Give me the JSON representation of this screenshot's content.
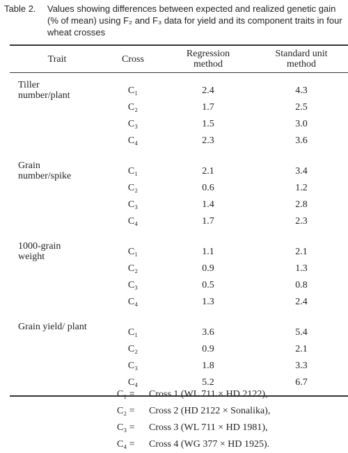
{
  "table_label": "Table 2.",
  "caption": "Values showing differences between expected and realized genetic gain (% of mean) using F₂ and F₃ data for yield and its component traits in four wheat crosses",
  "table": {
    "headers": [
      "Trait",
      "Cross",
      "Regression method",
      "Standard unit method"
    ],
    "groups": [
      {
        "trait": "Tiller number/plant",
        "rows": [
          [
            "C₁",
            "2.4",
            "4.3"
          ],
          [
            "C₂",
            "1.7",
            "2.5"
          ],
          [
            "C₃",
            "1.5",
            "3.0"
          ],
          [
            "C₄",
            "2.3",
            "3.6"
          ]
        ]
      },
      {
        "trait": "Grain number/spike",
        "rows": [
          [
            "C₁",
            "2.1",
            "3.4"
          ],
          [
            "C₂",
            "0.6",
            "1.2"
          ],
          [
            "C₃",
            "1.4",
            "2.8"
          ],
          [
            "C₄",
            "1.7",
            "2.3"
          ]
        ]
      },
      {
        "trait": "1000-grain weight",
        "rows": [
          [
            "C₁",
            "1.1",
            "2.1"
          ],
          [
            "C₂",
            "0.9",
            "1.3"
          ],
          [
            "C₃",
            "0.5",
            "0.8"
          ],
          [
            "C₄",
            "1.3",
            "2.4"
          ]
        ]
      },
      {
        "trait": "Grain yield/ plant",
        "rows": [
          [
            "C₁",
            "3.6",
            "5.4"
          ],
          [
            "C₂",
            "0.9",
            "2.1"
          ],
          [
            "C₃",
            "1.8",
            "3.3"
          ],
          [
            "C₄",
            "5.2",
            "6.7"
          ]
        ]
      }
    ]
  },
  "footnotes": [
    {
      "symbol": "C₁ =",
      "text": "Cross 1 (WL 711 × HD 2122),"
    },
    {
      "symbol": "C₂ =",
      "text": "Cross 2 (HD 2122 × Sonalika),"
    },
    {
      "symbol": "C₃ =",
      "text": "Cross 3 (WL 711 × HD 1981),"
    },
    {
      "symbol": "C₄ =",
      "text": "Cross 4 (WG 377 × HD 1925)."
    }
  ]
}
